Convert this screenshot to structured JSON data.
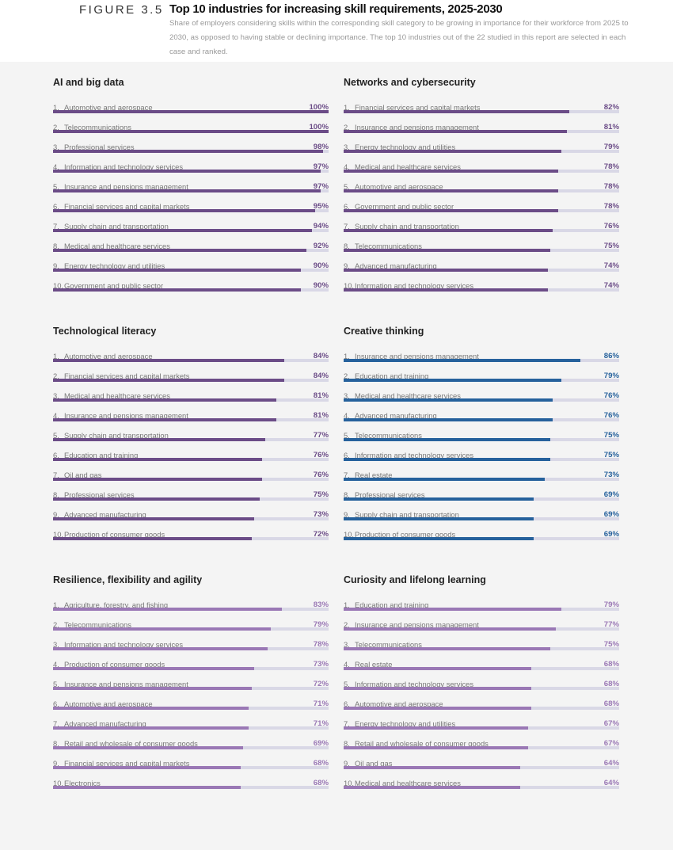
{
  "header": {
    "figure": "FIGURE 3.5",
    "title": "Top 10 industries for increasing skill requirements, 2025-2030",
    "subtitle": "Share of employers considering skills within the corresponding skill category to be growing in importance for their workforce from 2025 to 2030, as opposed to having stable or declining importance. The top 10 industries out of the 22 studied in this report are selected in each case and ranked."
  },
  "chart_data": [
    {
      "type": "bar",
      "orientation": "horizontal",
      "title": "AI and big data",
      "color": "#6b4c87",
      "xlim": [
        0,
        100
      ],
      "unit": "%",
      "categories": [
        "Automotive and aerospace",
        "Telecommunications",
        "Professional services",
        "Information and technology services",
        "Insurance and pensions management",
        "Financial services and capital markets",
        "Supply chain and transportation",
        "Medical and healthcare services",
        "Energy technology and utilities",
        "Government and public sector"
      ],
      "values": [
        100,
        100,
        98,
        97,
        97,
        95,
        94,
        92,
        90,
        90
      ]
    },
    {
      "type": "bar",
      "orientation": "horizontal",
      "title": "Networks and cybersecurity",
      "color": "#6b4c87",
      "xlim": [
        0,
        100
      ],
      "unit": "%",
      "categories": [
        "Financial services and capital markets",
        "Insurance and pensions management",
        "Energy technology and utilities",
        "Medical and healthcare services",
        "Automotive and aerospace",
        "Government and public sector",
        "Supply chain and transportation",
        "Telecommunications",
        "Advanced manufacturing",
        "Information and technology services"
      ],
      "values": [
        82,
        81,
        79,
        78,
        78,
        78,
        76,
        75,
        74,
        74
      ]
    },
    {
      "type": "bar",
      "orientation": "horizontal",
      "title": "Technological literacy",
      "color": "#6b4c87",
      "xlim": [
        0,
        100
      ],
      "unit": "%",
      "categories": [
        "Automotive and aerospace",
        "Financial services and capital markets",
        "Medical and healthcare services",
        "Insurance and pensions management",
        "Supply chain and transportation",
        "Education and training",
        "Oil and gas",
        "Professional services",
        "Advanced manufacturing",
        "Production of consumer goods"
      ],
      "values": [
        84,
        84,
        81,
        81,
        77,
        76,
        76,
        75,
        73,
        72
      ]
    },
    {
      "type": "bar",
      "orientation": "horizontal",
      "title": "Creative thinking",
      "color": "#26619c",
      "xlim": [
        0,
        100
      ],
      "unit": "%",
      "categories": [
        "Insurance and pensions management",
        "Education and training",
        "Medical and healthcare services",
        "Advanced manufacturing",
        "Telecommunications",
        "Information and technology services",
        "Real estate",
        "Professional services",
        "Supply chain and transportation",
        "Production of consumer goods"
      ],
      "values": [
        86,
        79,
        76,
        76,
        75,
        75,
        73,
        69,
        69,
        69
      ]
    },
    {
      "type": "bar",
      "orientation": "horizontal",
      "title": "Resilience, flexibility and agility",
      "color": "#9a78b5",
      "xlim": [
        0,
        100
      ],
      "unit": "%",
      "categories": [
        "Agriculture, forestry, and fishing",
        "Telecommunications",
        "Information and technology services",
        "Production of consumer goods",
        "Insurance and pensions management",
        "Automotive and aerospace",
        "Advanced manufacturing",
        "Retail and wholesale of consumer goods",
        "Financial services and capital markets",
        "Electronics"
      ],
      "values": [
        83,
        79,
        78,
        73,
        72,
        71,
        71,
        69,
        68,
        68
      ]
    },
    {
      "type": "bar",
      "orientation": "horizontal",
      "title": "Curiosity and lifelong learning",
      "color": "#9a78b5",
      "xlim": [
        0,
        100
      ],
      "unit": "%",
      "categories": [
        "Education and training",
        "Insurance and pensions management",
        "Telecommunications",
        "Real estate",
        "Information and technology services",
        "Automotive and aerospace",
        "Energy technology and utilities",
        "Retail and wholesale of consumer goods",
        "Oil and gas",
        "Medical and healthcare services"
      ],
      "values": [
        79,
        77,
        75,
        68,
        68,
        68,
        67,
        67,
        64,
        64
      ]
    }
  ]
}
